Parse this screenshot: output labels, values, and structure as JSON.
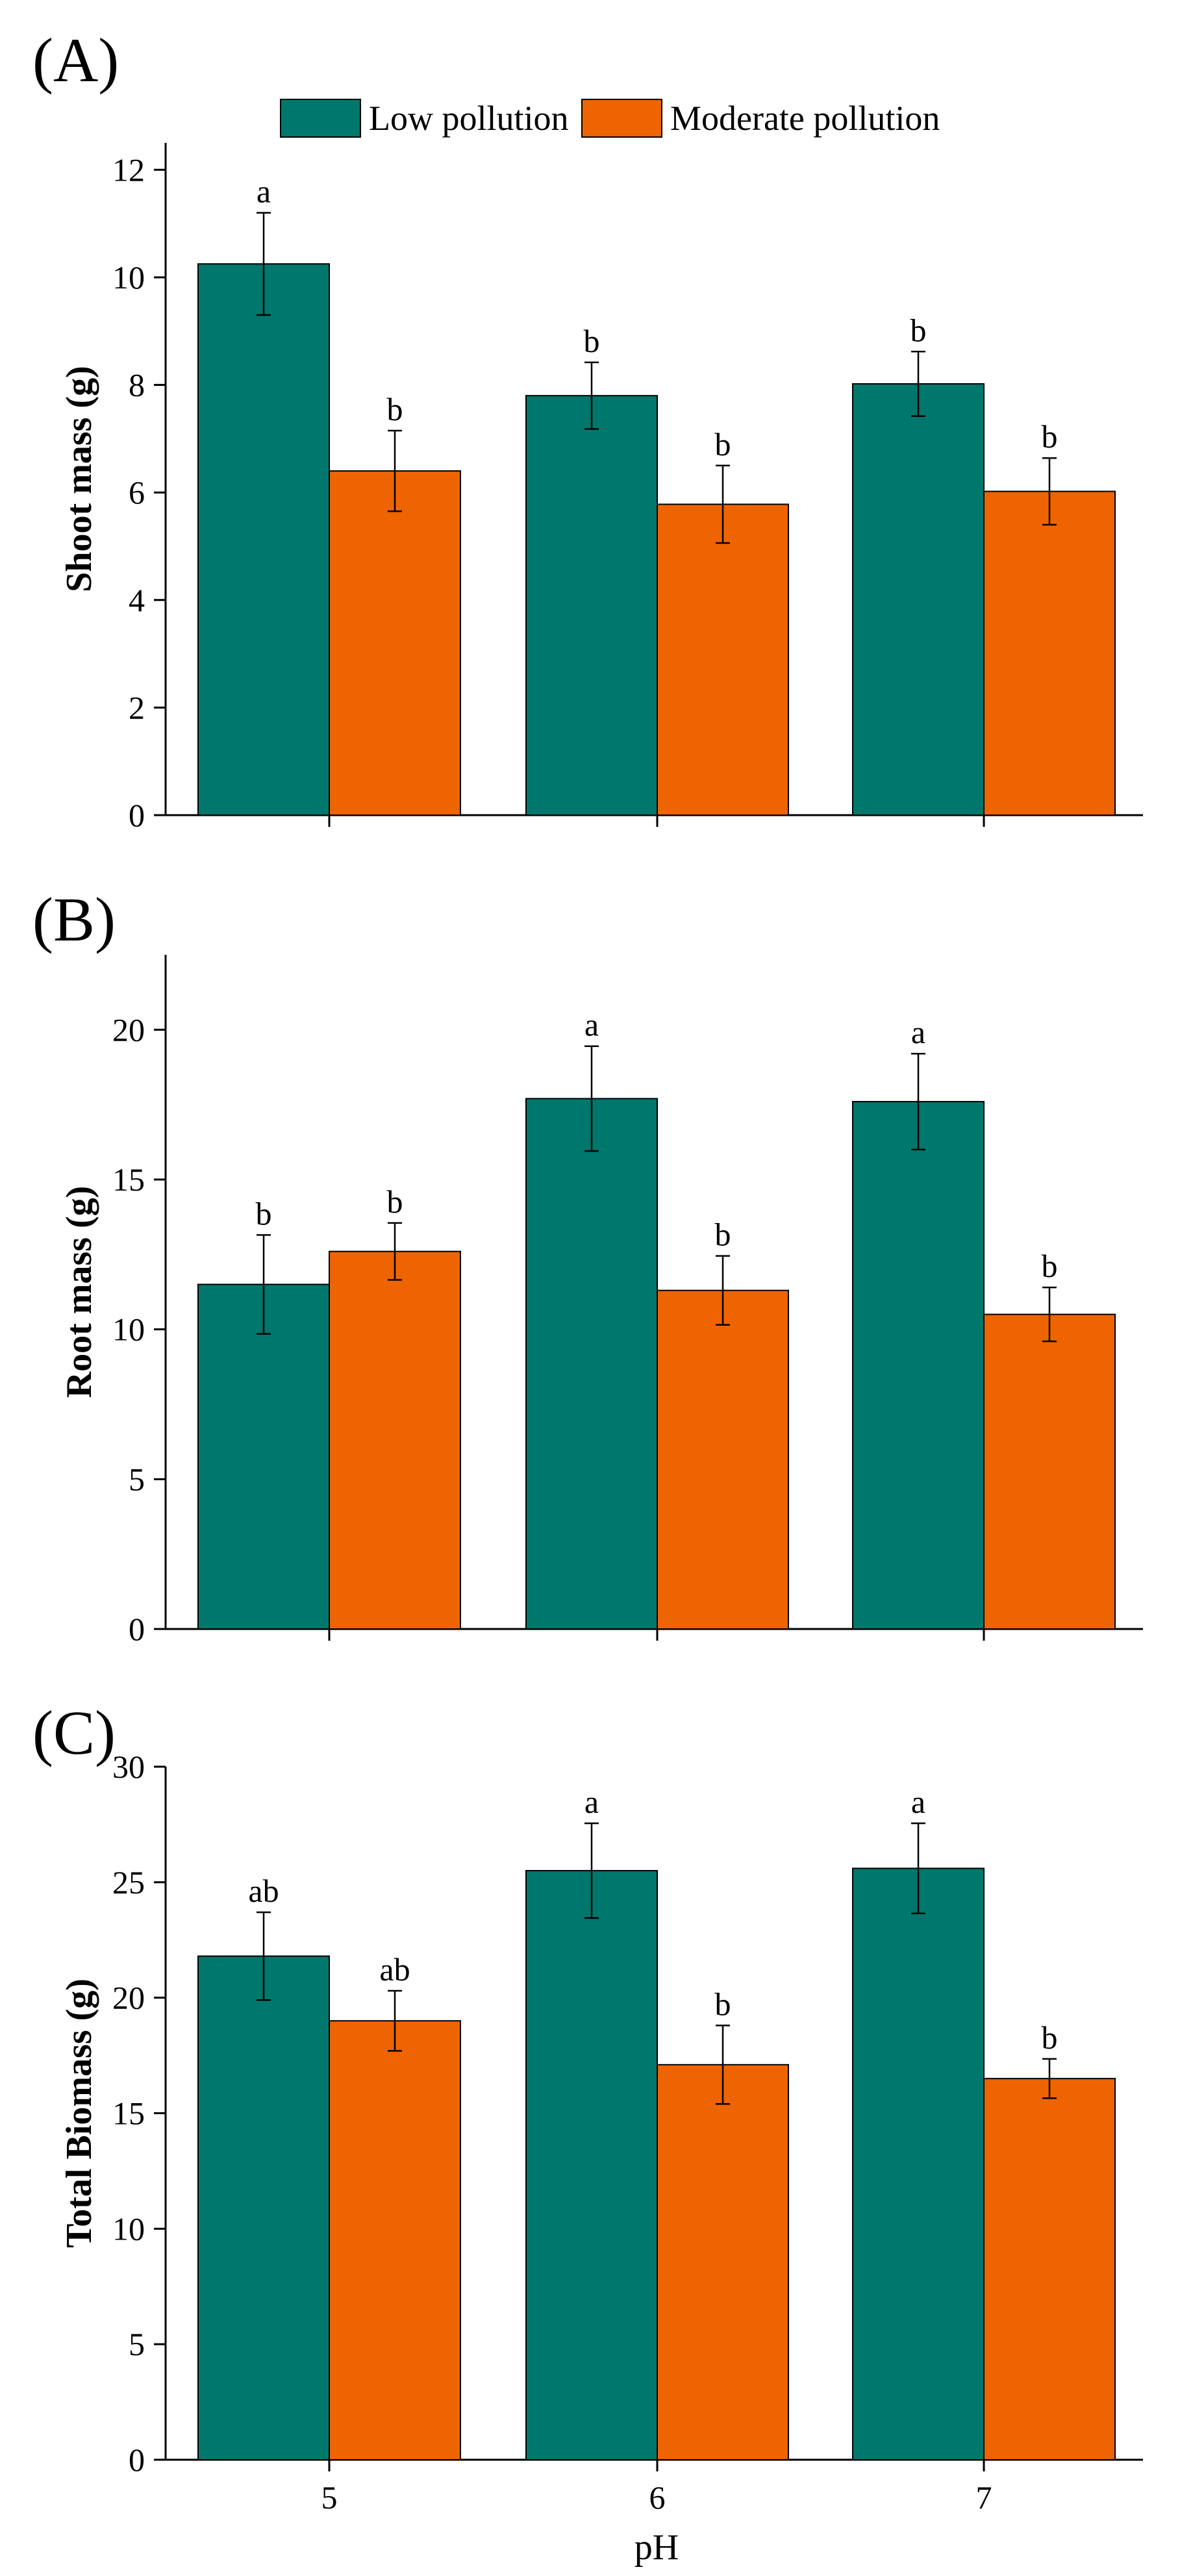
{
  "colors": {
    "low": "#00776C",
    "moderate": "#EE6400",
    "axis": "#000000",
    "background": "#FFFFFF"
  },
  "legend": {
    "items": [
      {
        "key": "low",
        "label": "Low pollution"
      },
      {
        "key": "moderate",
        "label": "Moderate pollution"
      }
    ]
  },
  "x_axis": {
    "title": "pH",
    "categories": [
      "5",
      "6",
      "7"
    ]
  },
  "chart_data": [
    {
      "type": "bar",
      "panel": "(A)",
      "ylabel": "Shoot mass (g)",
      "ylim": [
        0,
        12.5
      ],
      "yticks": [
        0,
        2,
        4,
        6,
        8,
        10,
        12
      ],
      "show_x_tick_labels": false,
      "categories": [
        "5",
        "6",
        "7"
      ],
      "series": [
        {
          "name": "Low pollution",
          "key": "low",
          "values": [
            10.25,
            7.8,
            8.02
          ],
          "errors": [
            0.95,
            0.62,
            0.6
          ],
          "sig": [
            "a",
            "b",
            "b"
          ]
        },
        {
          "name": "Moderate pollution",
          "key": "moderate",
          "values": [
            6.4,
            5.78,
            6.02
          ],
          "errors": [
            0.75,
            0.72,
            0.62
          ],
          "sig": [
            "b",
            "b",
            "b"
          ]
        }
      ]
    },
    {
      "type": "bar",
      "panel": "(B)",
      "ylabel": "Root mass (g)",
      "ylim": [
        0,
        22.5
      ],
      "yticks": [
        0,
        5,
        10,
        15,
        20
      ],
      "show_x_tick_labels": false,
      "categories": [
        "5",
        "6",
        "7"
      ],
      "series": [
        {
          "name": "Low pollution",
          "key": "low",
          "values": [
            11.5,
            17.7,
            17.6
          ],
          "errors": [
            1.65,
            1.75,
            1.6
          ],
          "sig": [
            "b",
            "a",
            "a"
          ]
        },
        {
          "name": "Moderate pollution",
          "key": "moderate",
          "values": [
            12.6,
            11.3,
            10.5
          ],
          "errors": [
            0.95,
            1.15,
            0.9
          ],
          "sig": [
            "b",
            "b",
            "b"
          ]
        }
      ]
    },
    {
      "type": "bar",
      "panel": "(C)",
      "ylabel": "Total Biomass (g)",
      "ylim": [
        0,
        30
      ],
      "yticks": [
        0,
        5,
        10,
        15,
        20,
        25,
        30
      ],
      "show_x_tick_labels": true,
      "categories": [
        "5",
        "6",
        "7"
      ],
      "series": [
        {
          "name": "Low pollution",
          "key": "low",
          "values": [
            21.8,
            25.5,
            25.6
          ],
          "errors": [
            1.9,
            2.05,
            1.95
          ],
          "sig": [
            "ab",
            "a",
            "a"
          ]
        },
        {
          "name": "Moderate pollution",
          "key": "moderate",
          "values": [
            19.0,
            17.1,
            16.5
          ],
          "errors": [
            1.3,
            1.7,
            0.85
          ],
          "sig": [
            "ab",
            "b",
            "b"
          ]
        }
      ]
    }
  ]
}
